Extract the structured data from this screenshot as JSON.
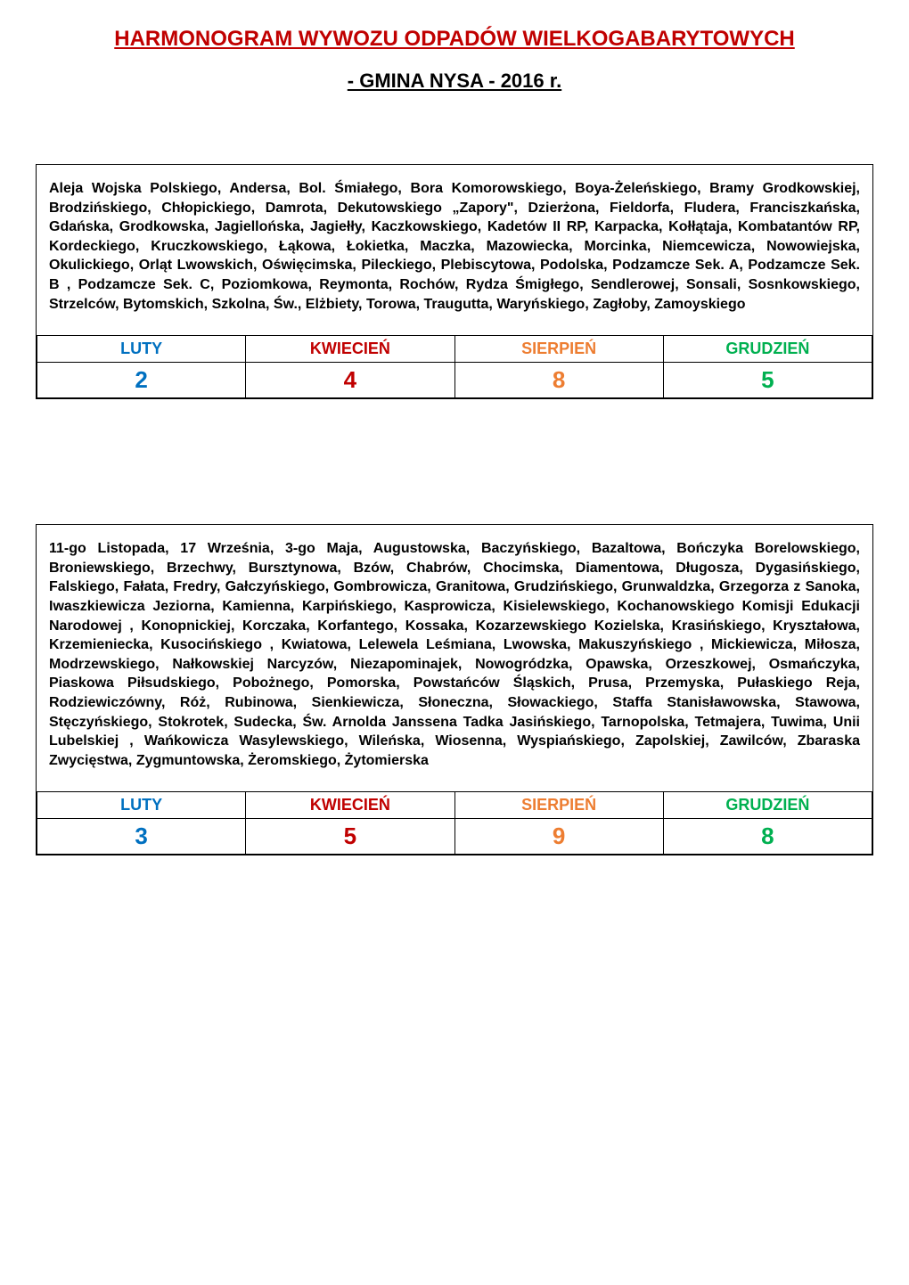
{
  "header": {
    "title_main": "HARMONOGRAM WYWOZU ODPADÓW WIELKOGABARYTOWYCH",
    "title_sub": "- GMINA NYSA - 2016 r."
  },
  "columns": {
    "luty": "LUTY",
    "kwiecien": "KWIECIEŃ",
    "sierpien": "SIERPIEŃ",
    "grudzien": "GRUDZIEŃ"
  },
  "colors": {
    "title_main": "#c00000",
    "title_sub": "#000000",
    "col_luty": "#0070c0",
    "col_kwiecien": "#c00000",
    "col_sierpien": "#ed7d31",
    "col_grudzien": "#00b050",
    "border": "#000000",
    "background": "#ffffff"
  },
  "typography": {
    "title_main_fontsize": 24,
    "title_sub_fontsize": 22,
    "streets_fontsize": 16,
    "header_fontsize": 18,
    "value_fontsize": 26,
    "font_family": "Arial, sans-serif"
  },
  "sections": [
    {
      "streets": "Aleja Wojska Polskiego, Andersa, Bol. Śmiałego, Bora Komorowskiego, Boya-Żeleńskiego, Bramy Grodkowskiej, Brodzińskiego, Chłopickiego, Damrota, Dekutowskiego „Zapory\", Dzierżona, Fieldorfa, Fludera, Franciszkańska, Gdańska, Grodkowska, Jagiellońska, Jagiełły, Kaczkowskiego, Kadetów II RP, Karpacka, Kołłątaja, Kombatantów RP, Kordeckiego, Kruczkowskiego, Łąkowa, Łokietka, Maczka, Mazowiecka, Morcinka, Niemcewicza, Nowowiejska, Okulickiego, Orląt Lwowskich, Oświęcimska, Pileckiego, Plebiscytowa, Podolska, Podzamcze Sek. A, Podzamcze Sek. B , Podzamcze Sek. C, Poziomkowa, Reymonta, Rochów, Rydza Śmigłego, Sendlerowej, Sonsali, Sosnkowskiego, Strzelców, Bytomskich, Szkolna, Św., Elżbiety, Torowa, Traugutta, Waryńskiego, Zagłoby, Zamoyskiego",
      "values": {
        "luty": "2",
        "kwiecien": "4",
        "sierpien": "8",
        "grudzien": "5"
      }
    },
    {
      "streets": "11-go Listopada, 17 Września, 3-go Maja, Augustowska, Baczyńskiego, Bazaltowa, Bończyka Borelowskiego, Broniewskiego, Brzechwy, Bursztynowa, Bzów, Chabrów, Chocimska, Diamentowa, Długosza, Dygasińskiego, Falskiego, Fałata, Fredry, Gałczyńskiego, Gombrowicza, Granitowa, Grudzińskiego, Grunwaldzka, Grzegorza z Sanoka, Iwaszkiewicza Jeziorna, Kamienna, Karpińskiego, Kasprowicza, Kisielewskiego, Kochanowskiego\nKomisji Edukacji Narodowej , Konopnickiej, Korczaka, Korfantego, Kossaka, Kozarzewskiego Kozielska, Krasińskiego, Kryształowa, Krzemieniecka, Kusocińskiego , Kwiatowa, Lelewela Leśmiana, Lwowska, Makuszyńskiego , Mickiewicza, Miłosza, Modrzewskiego, Nałkowskiej Narcyzów, Niezapominajek, Nowogródzka, Opawska, Orzeszkowej, Osmańczyka, Piaskowa Piłsudskiego, Pobożnego, Pomorska, Powstańców Śląskich, Prusa, Przemyska, Pułaskiego Reja, Rodziewiczówny, Róż, Rubinowa, Sienkiewicza, Słoneczna, Słowackiego, Staffa Stanisławowska, Stawowa, Stęczyńskiego, Stokrotek, Sudecka, Św. Arnolda Janssena\nTadka Jasińskiego, Tarnopolska, Tetmajera, Tuwima, Unii Lubelskiej , Wańkowicza Wasylewskiego, Wileńska, Wiosenna, Wyspiańskiego, Zapolskiej, Zawilców, Zbaraska Zwycięstwa, Zygmuntowska, Żeromskiego, Żytomierska",
      "values": {
        "luty": "3",
        "kwiecien": "5",
        "sierpien": "9",
        "grudzien": "8"
      }
    }
  ]
}
